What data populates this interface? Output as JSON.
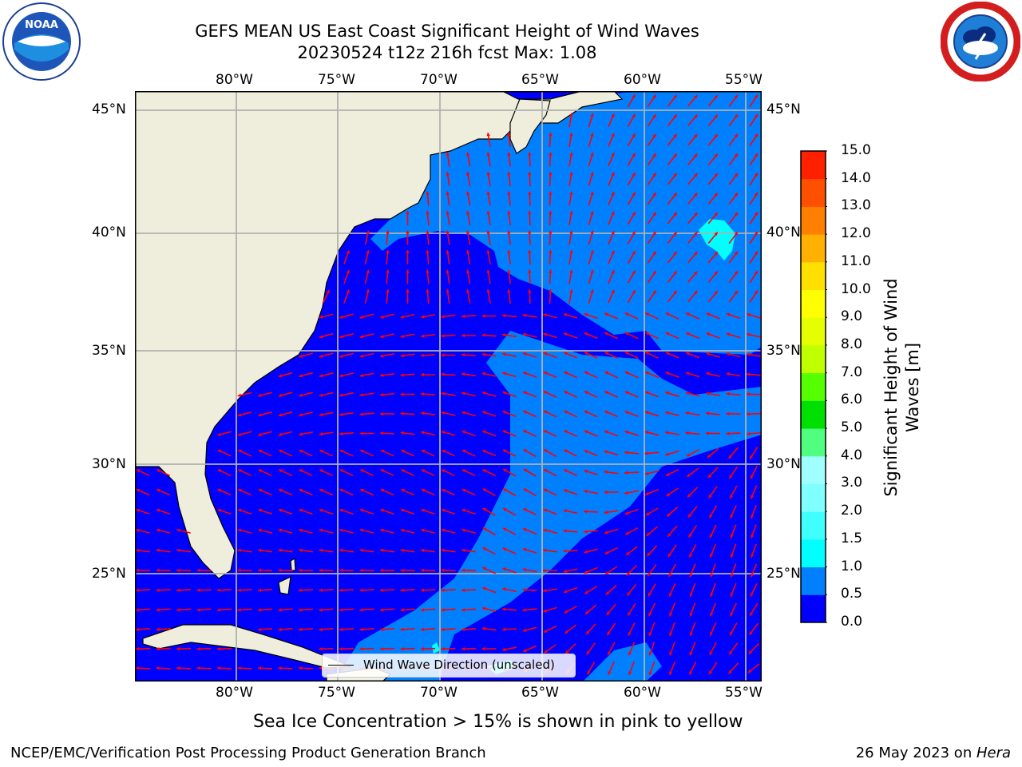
{
  "title": {
    "line1": "GEFS MEAN US East Coast Significant Height of Wind Waves",
    "line2": "20230524 t12z 216h fcst   Max: 1.08"
  },
  "map": {
    "lon_ticks": [
      "80°W",
      "75°W",
      "70°W",
      "65°W",
      "60°W",
      "55°W"
    ],
    "lat_ticks": [
      "45°N",
      "40°N",
      "35°N",
      "30°N",
      "25°N"
    ],
    "colors": {
      "land": "#efeedc",
      "ocean_low": "#0000ff",
      "ocean_mid": "#0080ff",
      "ocean_cyan": "#00ffff",
      "arrow": "#ff0000",
      "grid": "#b0b0b0"
    }
  },
  "legend": {
    "label": "Wind Wave Direction (unscaled)"
  },
  "colorbar": {
    "label_line1": "Significant Height of Wind",
    "label_line2": "Waves [m]",
    "ticks": [
      "0.0",
      "0.5",
      "1.0",
      "1.5",
      "2.0",
      "3.0",
      "4.0",
      "5.0",
      "6.0",
      "7.0",
      "8.0",
      "9.0",
      "10.0",
      "11.0",
      "12.0",
      "13.0",
      "14.0",
      "15.0"
    ],
    "colors": [
      "#0000ff",
      "#0080ff",
      "#00ffff",
      "#40ffff",
      "#80ffff",
      "#a0ffff",
      "#50ff80",
      "#00e000",
      "#55ff00",
      "#c0ff00",
      "#e6ff00",
      "#ffff00",
      "#ffe000",
      "#ffb000",
      "#ff8000",
      "#ff5000",
      "#ff2000"
    ]
  },
  "logos": {
    "noaa": {
      "text": "NOAA",
      "ring_text": "NATIONAL OCEANIC AND ATMOSPHERIC ADMINISTRATION · U.S. DEPARTMENT OF COMMERCE"
    },
    "nws": {
      "ring_text": "NATIONAL WEATHER SERVICE"
    }
  },
  "sea_ice_note": "Sea Ice Concentration > 15% is shown in pink to yellow",
  "footer": {
    "left": "NCEP/EMC/Verification Post Processing Product Generation Branch",
    "right_prefix": "26 May 2023 on ",
    "right_machine": "Hera"
  }
}
